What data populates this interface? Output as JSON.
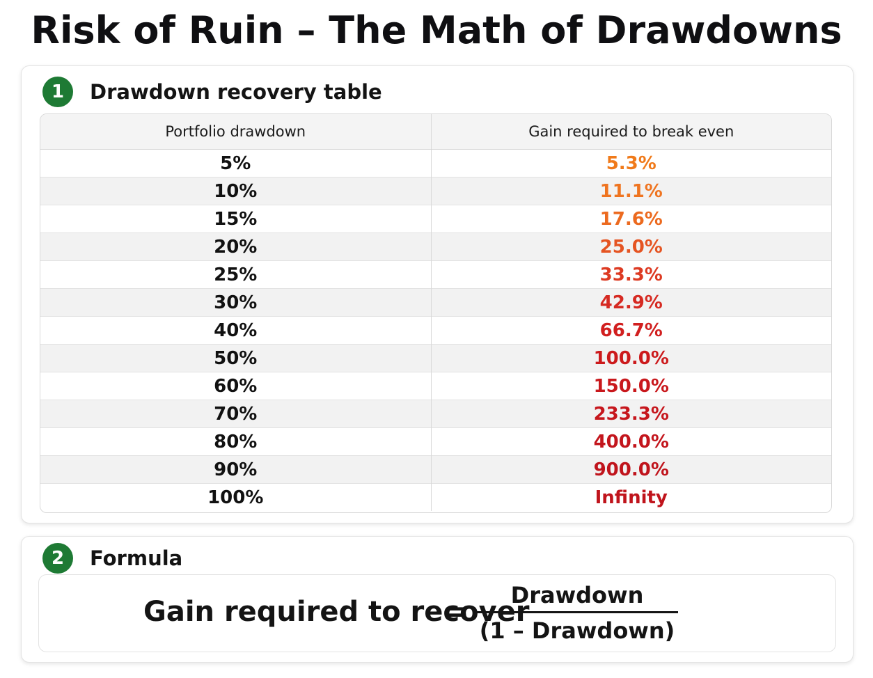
{
  "title": "Risk of Ruin – The Math of Drawdowns",
  "sections": [
    {
      "number": "1",
      "title": "Drawdown recovery table",
      "table": {
        "headers": [
          "Portfolio drawdown",
          "Gain required to break even"
        ],
        "rows": [
          {
            "drawdown": "5%",
            "gain": "5.3%",
            "gain_color": "#f07a1a"
          },
          {
            "drawdown": "10%",
            "gain": "11.1%",
            "gain_color": "#ef7420"
          },
          {
            "drawdown": "15%",
            "gain": "17.6%",
            "gain_color": "#ec6a1f"
          },
          {
            "drawdown": "20%",
            "gain": "25.0%",
            "gain_color": "#e55422"
          },
          {
            "drawdown": "25%",
            "gain": "33.3%",
            "gain_color": "#dd3a22"
          },
          {
            "drawdown": "30%",
            "gain": "42.9%",
            "gain_color": "#d62a22"
          },
          {
            "drawdown": "40%",
            "gain": "66.7%",
            "gain_color": "#d11f1f"
          },
          {
            "drawdown": "50%",
            "gain": "100.0%",
            "gain_color": "#cc1a1c"
          },
          {
            "drawdown": "60%",
            "gain": "150.0%",
            "gain_color": "#c9181c"
          },
          {
            "drawdown": "70%",
            "gain": "233.3%",
            "gain_color": "#c6161c"
          },
          {
            "drawdown": "80%",
            "gain": "400.0%",
            "gain_color": "#c3151c"
          },
          {
            "drawdown": "90%",
            "gain": "900.0%",
            "gain_color": "#c0141c"
          },
          {
            "drawdown": "100%",
            "gain": "Infinity",
            "gain_color": "#c0141c"
          }
        ]
      }
    },
    {
      "number": "2",
      "title": "Formula",
      "formula": {
        "lhs": "Gain required to recover",
        "equals": "=",
        "numerator": "Drawdown",
        "denominator": "(1 – Drawdown)"
      }
    }
  ],
  "colors": {
    "badge": "#1e7a34",
    "text": "#141414"
  }
}
